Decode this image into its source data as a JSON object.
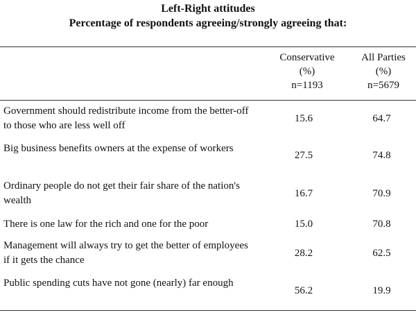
{
  "title": "Left-Right attitudes",
  "subtitle": "Percentage of respondents agreeing/strongly agreeing that:",
  "columns": [
    {
      "name": "Conservative",
      "unit": "(%)",
      "n": "n=1193"
    },
    {
      "name": "All Parties",
      "unit": "(%)",
      "n": "n=5679"
    }
  ],
  "rows": [
    {
      "label": "Government should redistribute income from the better-off to those who are less well off",
      "conservative": "15.6",
      "all_parties": "64.7"
    },
    {
      "label": "Big business benefits owners at the expense of workers",
      "conservative": "27.5",
      "all_parties": "74.8"
    },
    {
      "label": "Ordinary people do not get their fair share of the nation's wealth",
      "conservative": "16.7",
      "all_parties": "70.9"
    },
    {
      "label": "There is one law for the rich and one for the poor",
      "conservative": "15.0",
      "all_parties": "70.8"
    },
    {
      "label": "Management will always try to get the better of employees if it gets the chance",
      "conservative": "28.2",
      "all_parties": "62.5"
    },
    {
      "label": "Public spending cuts have not gone (nearly) far enough",
      "conservative": "56.2",
      "all_parties": "19.9"
    }
  ]
}
